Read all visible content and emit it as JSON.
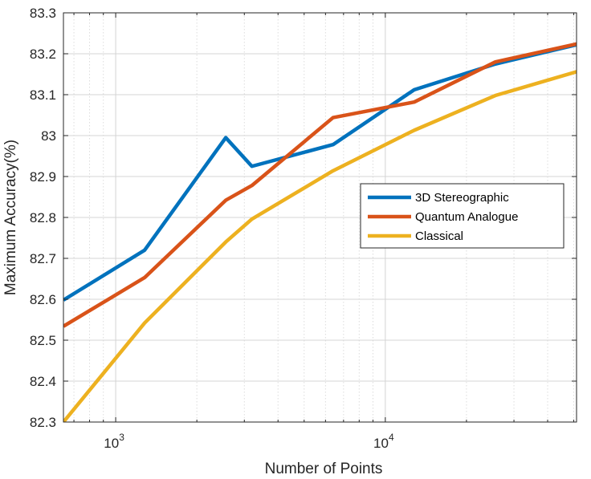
{
  "chart_data": {
    "type": "line",
    "title": "",
    "xlabel": "Number of Points",
    "ylabel": "Maximum Accuracy(%)",
    "xscale": "log",
    "xlim": [
      640,
      51200
    ],
    "ylim": [
      82.3,
      83.3
    ],
    "grid": true,
    "minor_grid": true,
    "legend_location": "right-center",
    "x_tick_labels": [
      {
        "value": 1000,
        "base": "10",
        "exp": "3"
      },
      {
        "value": 10000,
        "base": "10",
        "exp": "4"
      }
    ],
    "y_ticks": [
      82.3,
      82.4,
      82.5,
      82.6,
      82.7,
      82.8,
      82.9,
      83,
      83.1,
      83.2,
      83.3
    ],
    "x": [
      640,
      1280,
      2560,
      3200,
      6400,
      12800,
      25600,
      51200
    ],
    "series": [
      {
        "name": "3D Stereographic",
        "color": "#0072BD",
        "values": [
          82.598,
          82.72,
          82.995,
          82.925,
          82.978,
          83.112,
          83.175,
          83.222
        ]
      },
      {
        "name": "Quantum Analogue",
        "color": "#D95319",
        "values": [
          82.534,
          82.653,
          82.842,
          82.878,
          83.044,
          83.082,
          83.18,
          83.224
        ]
      },
      {
        "name": "Classical",
        "color": "#EDB120",
        "values": [
          82.3,
          82.542,
          82.74,
          82.796,
          82.914,
          83.013,
          83.098,
          83.156
        ]
      }
    ]
  }
}
